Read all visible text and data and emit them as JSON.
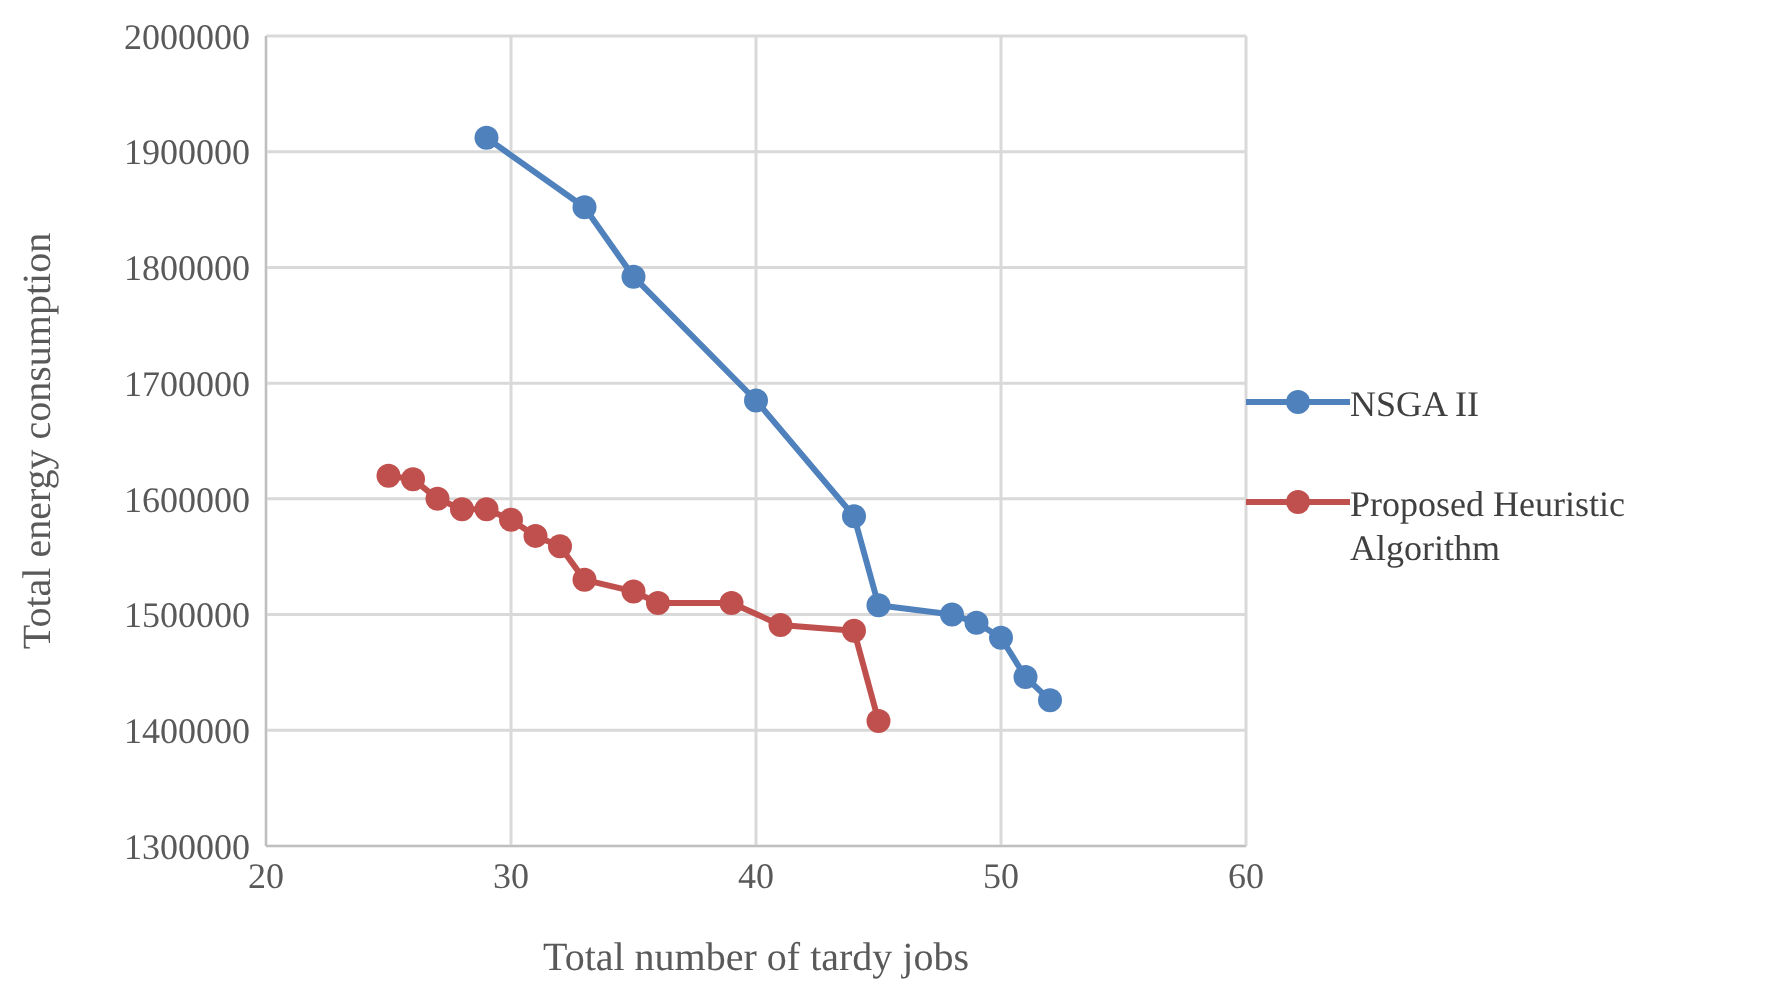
{
  "chart_data": {
    "type": "line",
    "xlabel": "Total number of tardy jobs",
    "ylabel": "Total energy consumption",
    "xlim": [
      20,
      60
    ],
    "xticks": [
      20,
      30,
      40,
      50,
      60
    ],
    "ylim": [
      1300000,
      2000000
    ],
    "yticks": [
      1300000,
      1400000,
      1500000,
      1600000,
      1700000,
      1800000,
      1900000,
      2000000
    ],
    "grid": true,
    "legend": "right",
    "marker": "circle",
    "line_style": "solid",
    "series": [
      {
        "name": "NSGA II",
        "color": "#4f81bd",
        "x": [
          29,
          33,
          35,
          40,
          44,
          45,
          48,
          49,
          50,
          51,
          52
        ],
        "values": [
          1912000,
          1852000,
          1792000,
          1685000,
          1585000,
          1508000,
          1500000,
          1493000,
          1480000,
          1446000,
          1426000
        ]
      },
      {
        "name": "Proposed Heuristic Algorithm",
        "color": "#c0504d",
        "x": [
          25,
          26,
          27,
          28,
          29,
          30,
          31,
          32,
          33,
          35,
          36,
          39,
          41,
          44,
          45
        ],
        "values": [
          1620000,
          1617000,
          1600000,
          1591000,
          1591000,
          1582000,
          1568000,
          1559000,
          1530000,
          1520000,
          1510000,
          1510000,
          1491000,
          1486000,
          1408000
        ]
      }
    ]
  }
}
